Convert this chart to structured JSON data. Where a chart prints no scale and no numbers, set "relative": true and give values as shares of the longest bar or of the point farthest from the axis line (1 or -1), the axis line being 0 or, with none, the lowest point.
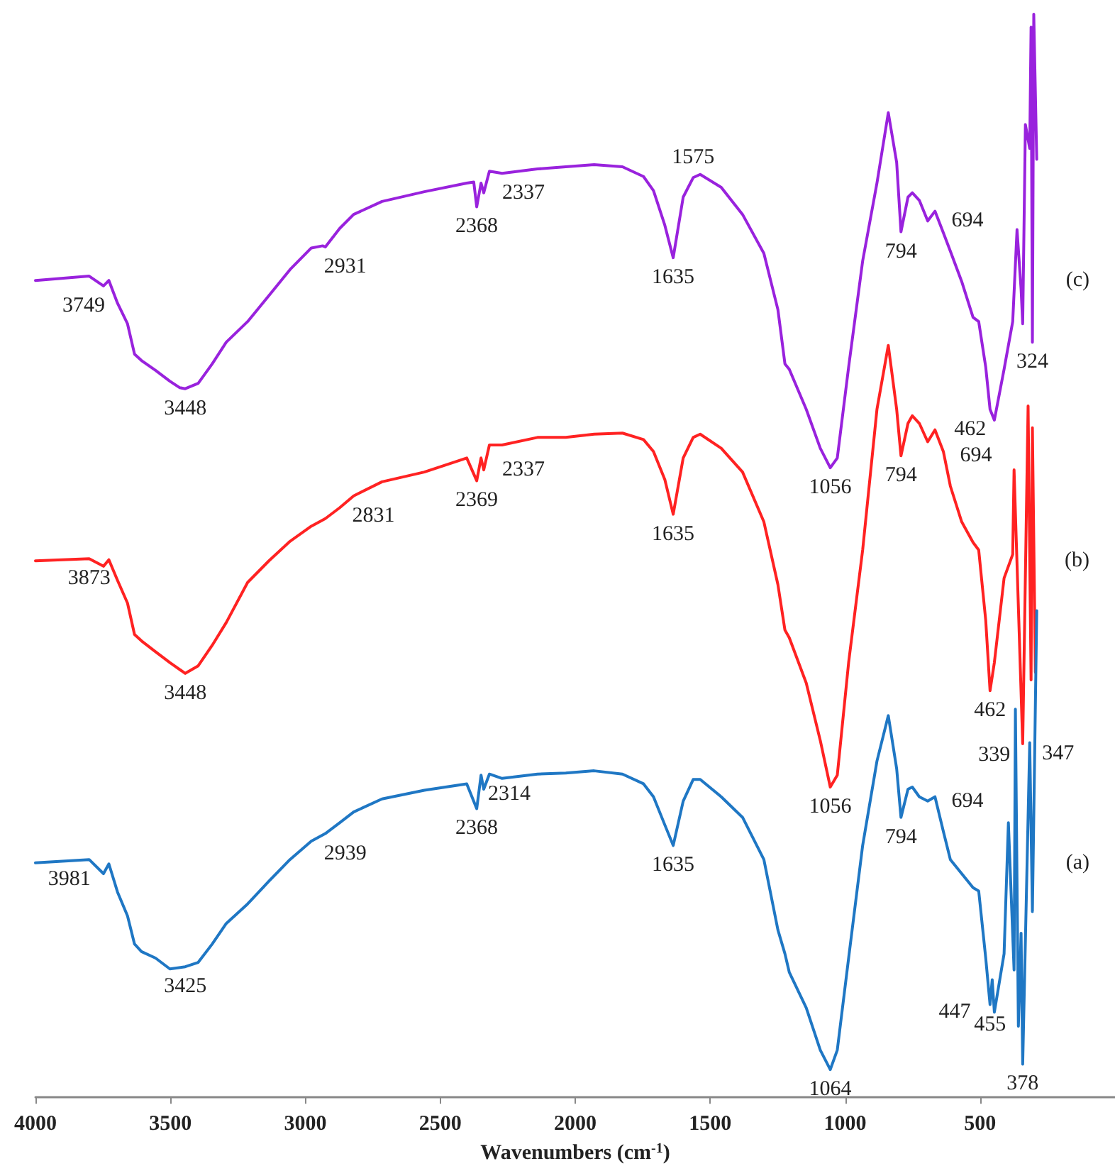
{
  "chart_data": {
    "type": "line",
    "relative": true,
    "xlabel": "Wavenumbers (cm$^{-1}$)",
    "xlim": [
      4000,
      0
    ],
    "xticks": [
      4000,
      3500,
      3000,
      2500,
      2000,
      1500,
      1000,
      500
    ],
    "grid": false,
    "legend": false,
    "marker": "none",
    "line_style": "solid",
    "series": [
      {
        "name": "(c)",
        "color": "#9922dd",
        "x": [
          4000,
          3801,
          3748,
          3728,
          3696,
          3659,
          3633,
          3607,
          3555,
          3502,
          3466,
          3445,
          3397,
          3345,
          3293,
          3214,
          3135,
          3057,
          2978,
          2936,
          2926,
          2873,
          2821,
          2716,
          2559,
          2402,
          2376,
          2365,
          2349,
          2339,
          2318,
          2271,
          2140,
          2035,
          1930,
          1825,
          1747,
          1710,
          1668,
          1637,
          1600,
          1563,
          1537,
          1459,
          1380,
          1301,
          1249,
          1223,
          1207,
          1144,
          1092,
          1055,
          1029,
          987,
          935,
          882,
          840,
          809,
          793,
          767,
          751,
          725,
          694,
          667,
          636,
          610,
          568,
          526,
          505,
          479,
          463,
          447,
          411,
          379,
          363,
          348,
          342,
          332,
          316,
          311,
          306,
          301,
          290
        ],
        "values": [
          0.754,
          0.758,
          0.749,
          0.754,
          0.733,
          0.714,
          0.686,
          0.68,
          0.671,
          0.661,
          0.655,
          0.654,
          0.659,
          0.677,
          0.697,
          0.716,
          0.74,
          0.764,
          0.784,
          0.786,
          0.785,
          0.802,
          0.815,
          0.827,
          0.836,
          0.844,
          0.845,
          0.822,
          0.844,
          0.835,
          0.855,
          0.853,
          0.857,
          0.859,
          0.861,
          0.859,
          0.85,
          0.837,
          0.805,
          0.775,
          0.831,
          0.849,
          0.852,
          0.84,
          0.815,
          0.779,
          0.727,
          0.677,
          0.672,
          0.635,
          0.599,
          0.581,
          0.59,
          0.674,
          0.772,
          0.844,
          0.909,
          0.863,
          0.799,
          0.831,
          0.835,
          0.828,
          0.809,
          0.818,
          0.798,
          0.781,
          0.753,
          0.72,
          0.716,
          0.674,
          0.635,
          0.625,
          0.672,
          0.716,
          0.801,
          0.746,
          0.714,
          0.898,
          0.876,
          0.988,
          0.697,
          1.0,
          0.866
        ]
      },
      {
        "name": "(b)",
        "color": "#ff2222",
        "x": [
          4000,
          3801,
          3748,
          3728,
          3696,
          3659,
          3633,
          3607,
          3555,
          3502,
          3445,
          3397,
          3345,
          3293,
          3214,
          3135,
          3057,
          2978,
          2926,
          2873,
          2821,
          2716,
          2559,
          2402,
          2365,
          2349,
          2339,
          2318,
          2271,
          2140,
          2035,
          1930,
          1825,
          1747,
          1710,
          1668,
          1637,
          1600,
          1563,
          1537,
          1459,
          1380,
          1301,
          1249,
          1223,
          1207,
          1144,
          1092,
          1055,
          1029,
          987,
          935,
          882,
          840,
          809,
          793,
          767,
          751,
          725,
          694,
          667,
          636,
          610,
          568,
          526,
          505,
          479,
          463,
          447,
          411,
          379,
          374,
          342,
          322,
          311,
          306,
          295
        ],
        "values": [
          0.495,
          0.497,
          0.49,
          0.496,
          0.477,
          0.456,
          0.427,
          0.421,
          0.411,
          0.401,
          0.391,
          0.398,
          0.417,
          0.438,
          0.475,
          0.495,
          0.513,
          0.527,
          0.534,
          0.544,
          0.555,
          0.568,
          0.577,
          0.59,
          0.569,
          0.59,
          0.579,
          0.602,
          0.602,
          0.609,
          0.609,
          0.612,
          0.613,
          0.607,
          0.596,
          0.57,
          0.538,
          0.59,
          0.609,
          0.612,
          0.599,
          0.577,
          0.531,
          0.473,
          0.431,
          0.424,
          0.382,
          0.329,
          0.286,
          0.297,
          0.401,
          0.505,
          0.635,
          0.694,
          0.635,
          0.592,
          0.622,
          0.629,
          0.622,
          0.605,
          0.616,
          0.596,
          0.564,
          0.531,
          0.512,
          0.505,
          0.44,
          0.375,
          0.401,
          0.479,
          0.501,
          0.579,
          0.326,
          0.638,
          0.385,
          0.618,
          0.392
        ]
      },
      {
        "name": "(a)",
        "color": "#1f77c4",
        "x": [
          4000,
          3801,
          3748,
          3728,
          3696,
          3659,
          3633,
          3607,
          3555,
          3502,
          3445,
          3397,
          3345,
          3293,
          3214,
          3135,
          3057,
          2978,
          2926,
          2873,
          2821,
          2716,
          2559,
          2402,
          2365,
          2349,
          2339,
          2318,
          2271,
          2140,
          2035,
          1930,
          1825,
          1747,
          1710,
          1668,
          1637,
          1600,
          1563,
          1537,
          1459,
          1380,
          1301,
          1249,
          1223,
          1207,
          1144,
          1092,
          1055,
          1029,
          987,
          935,
          882,
          840,
          809,
          793,
          767,
          751,
          725,
          694,
          667,
          636,
          610,
          568,
          526,
          505,
          479,
          463,
          455,
          447,
          411,
          395,
          374,
          369,
          358,
          348,
          342,
          316,
          306,
          290
        ],
        "values": [
          0.216,
          0.219,
          0.206,
          0.215,
          0.189,
          0.167,
          0.141,
          0.134,
          0.128,
          0.118,
          0.12,
          0.124,
          0.141,
          0.16,
          0.178,
          0.199,
          0.219,
          0.236,
          0.243,
          0.253,
          0.263,
          0.275,
          0.283,
          0.289,
          0.266,
          0.297,
          0.284,
          0.298,
          0.294,
          0.298,
          0.299,
          0.301,
          0.298,
          0.289,
          0.277,
          0.251,
          0.232,
          0.273,
          0.293,
          0.293,
          0.277,
          0.258,
          0.219,
          0.154,
          0.132,
          0.115,
          0.082,
          0.043,
          0.025,
          0.043,
          0.128,
          0.232,
          0.31,
          0.352,
          0.303,
          0.258,
          0.284,
          0.286,
          0.277,
          0.273,
          0.277,
          0.245,
          0.219,
          0.206,
          0.193,
          0.19,
          0.128,
          0.085,
          0.108,
          0.078,
          0.132,
          0.253,
          0.117,
          0.358,
          0.065,
          0.151,
          0.03,
          0.327,
          0.171,
          0.449
        ]
      }
    ],
    "annotations": [
      {
        "text": "3749",
        "x": 3748,
        "y": 0.749
      },
      {
        "text": "3448",
        "x": 3445,
        "y": 0.654
      },
      {
        "text": "2931",
        "x": 2926,
        "y": 0.785
      },
      {
        "text": "2368",
        "x": 2365,
        "y": 0.822
      },
      {
        "text": "2337",
        "x": 2339,
        "y": 0.835
      },
      {
        "text": "1635",
        "x": 1637,
        "y": 0.775
      },
      {
        "text": "1575",
        "x": 1563,
        "y": 0.849
      },
      {
        "text": "1056",
        "x": 1055,
        "y": 0.581
      },
      {
        "text": "794",
        "x": 793,
        "y": 0.799
      },
      {
        "text": "694",
        "x": 694,
        "y": 0.809
      },
      {
        "text": "462",
        "x": 463,
        "y": 0.635
      },
      {
        "text": "324",
        "x": 306,
        "y": 0.697
      },
      {
        "text": "3873",
        "x": 3801,
        "y": 0.497
      },
      {
        "text": "3448",
        "x": 3445,
        "y": 0.391
      },
      {
        "text": "2831",
        "x": 2821,
        "y": 0.555
      },
      {
        "text": "2369",
        "x": 2365,
        "y": 0.569
      },
      {
        "text": "2337",
        "x": 2339,
        "y": 0.579
      },
      {
        "text": "1635",
        "x": 1637,
        "y": 0.538
      },
      {
        "text": "1056",
        "x": 1055,
        "y": 0.286
      },
      {
        "text": "794",
        "x": 793,
        "y": 0.592
      },
      {
        "text": "694",
        "x": 694,
        "y": 0.605
      },
      {
        "text": "462",
        "x": 463,
        "y": 0.375
      },
      {
        "text": "339",
        "x": 342,
        "y": 0.326
      },
      {
        "text": "3981",
        "x": 3801,
        "y": 0.219
      },
      {
        "text": "3425",
        "x": 3445,
        "y": 0.12
      },
      {
        "text": "2939",
        "x": 2926,
        "y": 0.243
      },
      {
        "text": "2368",
        "x": 2365,
        "y": 0.266
      },
      {
        "text": "2314",
        "x": 2318,
        "y": 0.298
      },
      {
        "text": "1635",
        "x": 1637,
        "y": 0.232
      },
      {
        "text": "1064",
        "x": 1055,
        "y": 0.025
      },
      {
        "text": "794",
        "x": 793,
        "y": 0.258
      },
      {
        "text": "694",
        "x": 694,
        "y": 0.273
      },
      {
        "text": "455",
        "x": 463,
        "y": 0.085
      },
      {
        "text": "447",
        "x": 447,
        "y": 0.078
      },
      {
        "text": "378",
        "x": 342,
        "y": 0.03
      },
      {
        "text": "347",
        "x": 316,
        "y": 0.327
      }
    ]
  }
}
